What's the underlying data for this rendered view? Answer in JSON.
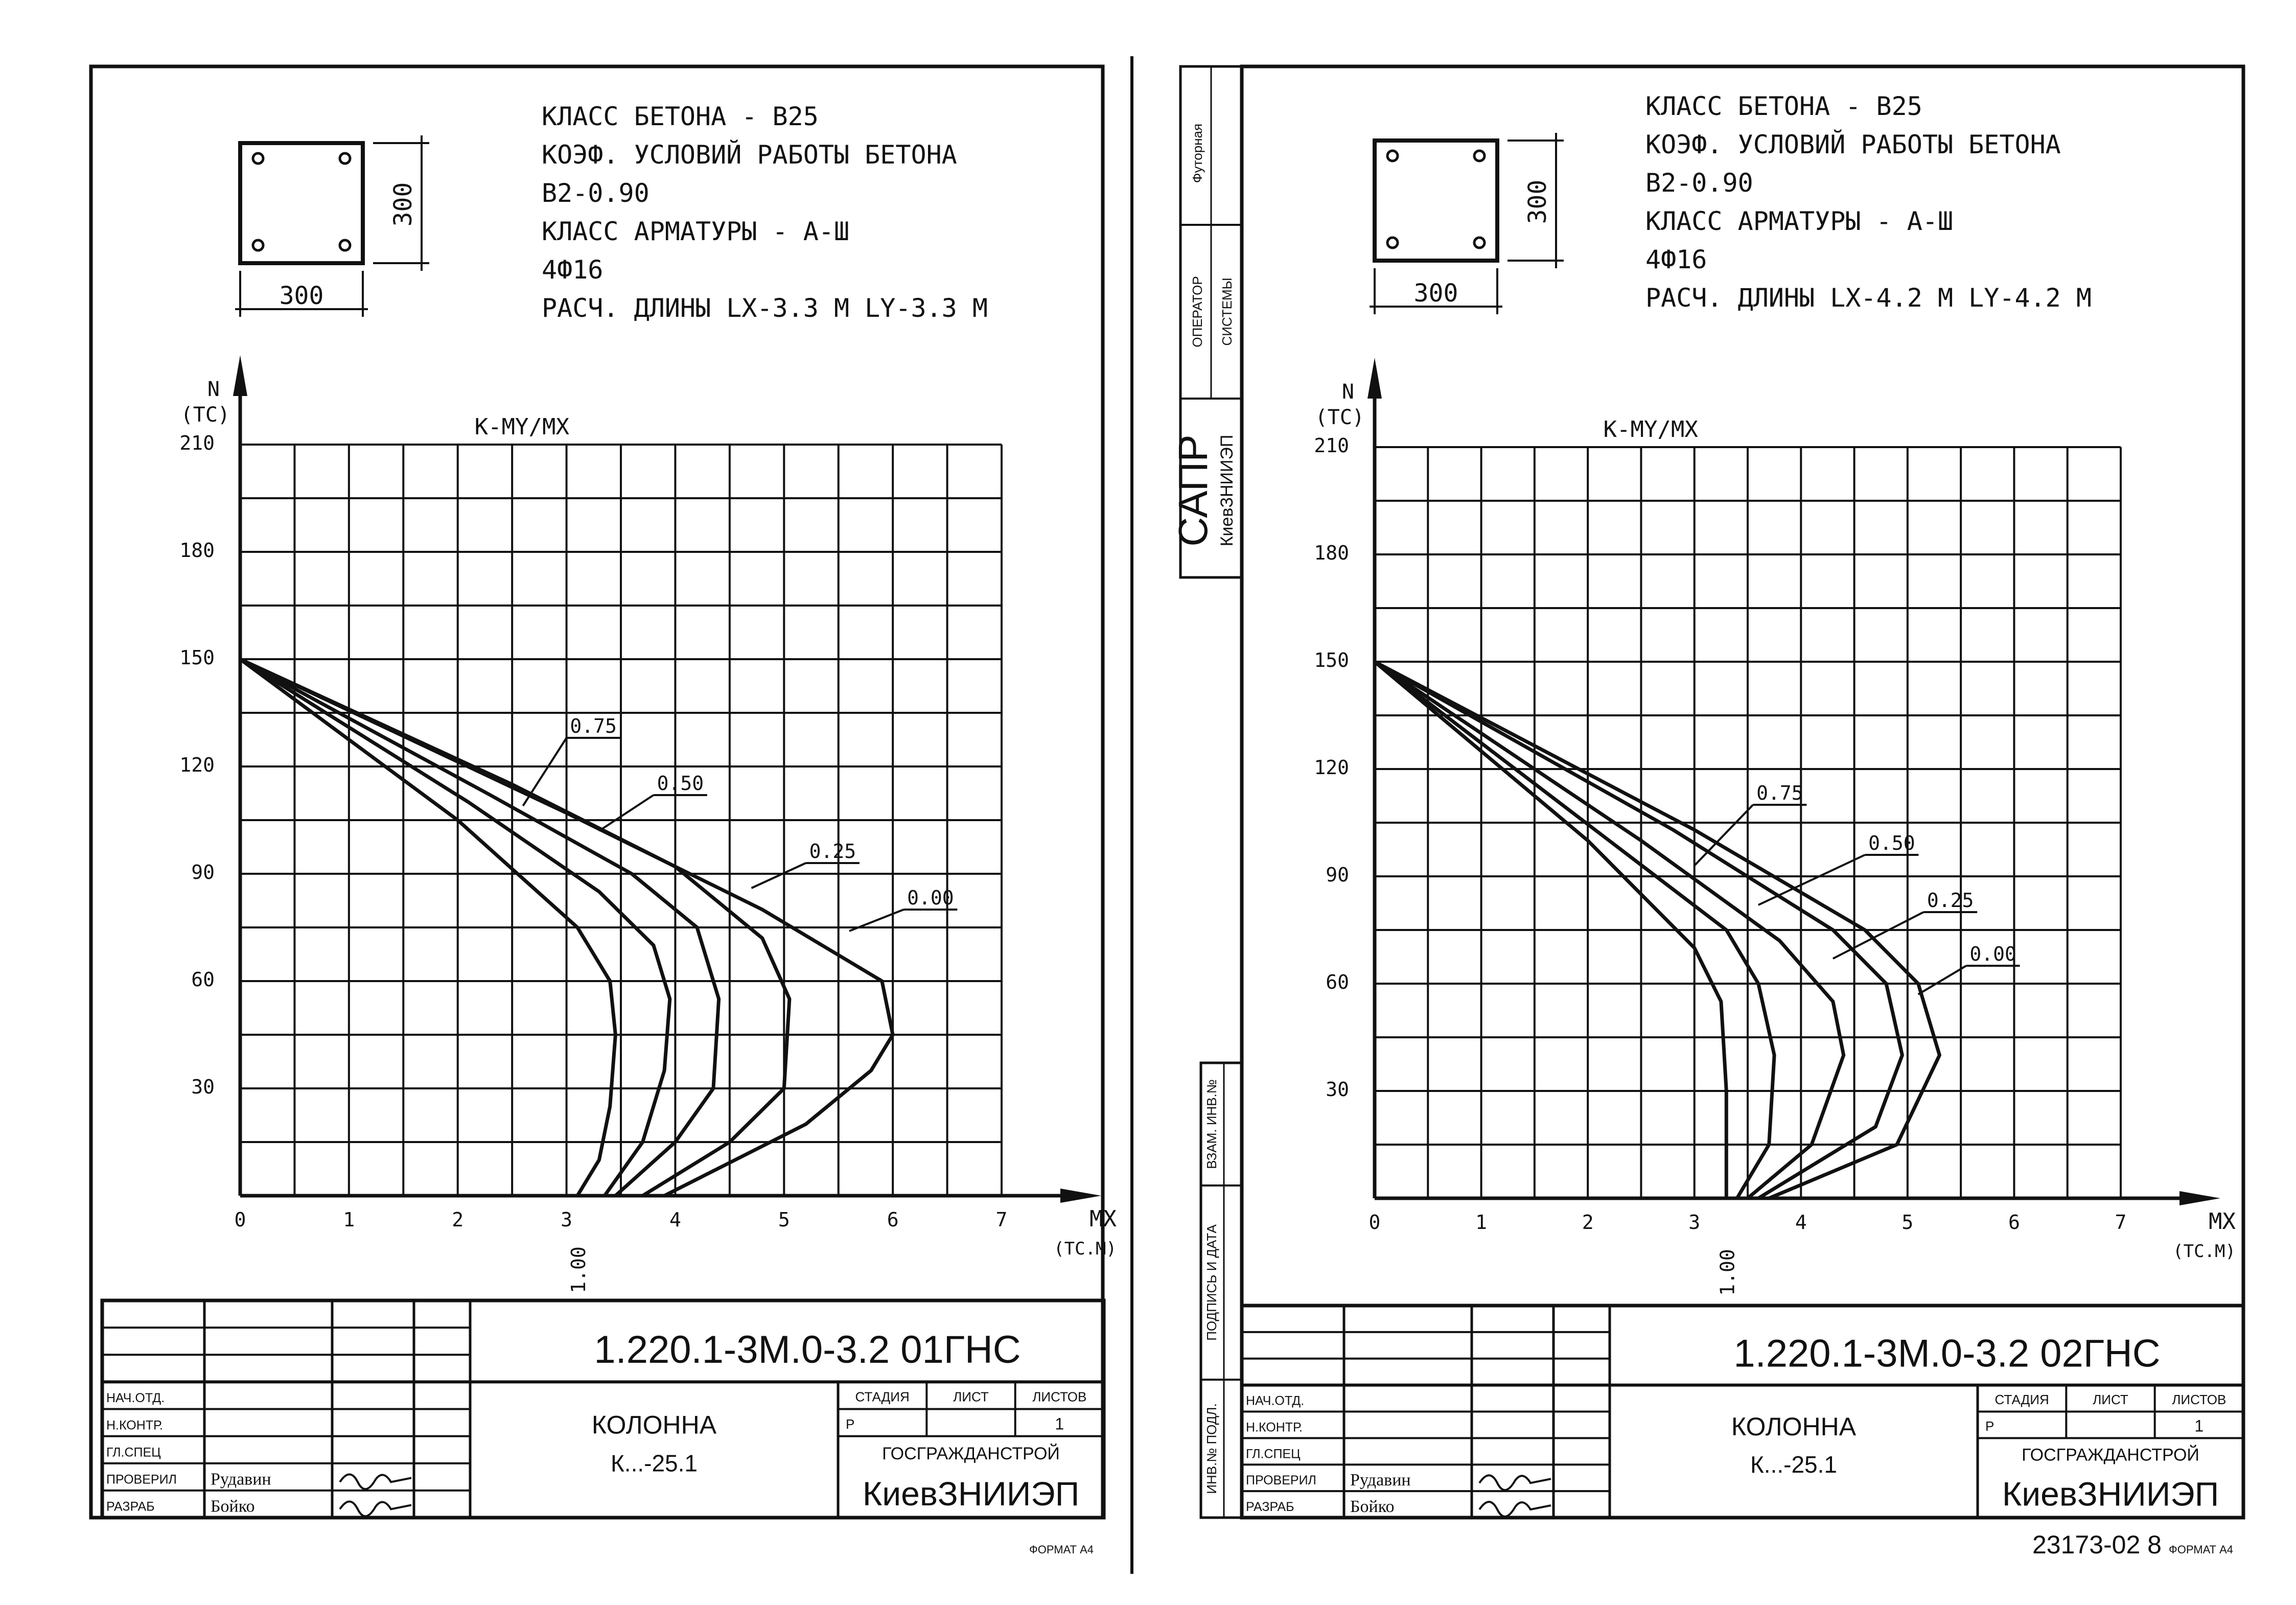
{
  "sheets": [
    {
      "params": [
        "КЛАСС БЕТОНА - В25",
        "КОЭФ. УСЛОВИЙ РАБОТЫ БЕТОНА",
        "В2-0.90",
        "КЛАСС АРМАТУРЫ - А-Ш",
        "4Ф16",
        "РАСЧ. ДЛИНЫ  LX-3.3 М  LY-3.3 М"
      ],
      "section": {
        "width_label": "300",
        "height_label": "300"
      },
      "chart_data": {
        "type": "line",
        "title": "K-MY/MX",
        "ylabel": "N (TC)",
        "xlabel": "MX (TC.M)",
        "xlim": [
          0,
          7
        ],
        "ylim": [
          0,
          210
        ],
        "x_ticks": [
          "0",
          "1",
          "2",
          "3",
          "4",
          "5",
          "6",
          "7"
        ],
        "y_ticks": [
          "30",
          "60",
          "90",
          "120",
          "150",
          "180",
          "210"
        ],
        "series": [
          {
            "name": "1.00",
            "points": [
              [
                3.1,
                0
              ],
              [
                3.3,
                10
              ],
              [
                3.4,
                25
              ],
              [
                3.45,
                45
              ],
              [
                3.4,
                60
              ],
              [
                3.1,
                75
              ],
              [
                2.0,
                105
              ],
              [
                0,
                150
              ]
            ]
          },
          {
            "name": "0.75",
            "points": [
              [
                3.35,
                0
              ],
              [
                3.7,
                15
              ],
              [
                3.9,
                35
              ],
              [
                3.95,
                55
              ],
              [
                3.8,
                70
              ],
              [
                3.3,
                85
              ],
              [
                2.1,
                110
              ],
              [
                0,
                150
              ]
            ]
          },
          {
            "name": "0.50",
            "points": [
              [
                3.45,
                0
              ],
              [
                4.0,
                15
              ],
              [
                4.35,
                30
              ],
              [
                4.4,
                55
              ],
              [
                4.2,
                75
              ],
              [
                3.6,
                90
              ],
              [
                2.3,
                112
              ],
              [
                0,
                150
              ]
            ]
          },
          {
            "name": "0.25",
            "points": [
              [
                3.7,
                0
              ],
              [
                4.5,
                15
              ],
              [
                5.0,
                30
              ],
              [
                5.05,
                55
              ],
              [
                4.8,
                72
              ],
              [
                4.0,
                92
              ],
              [
                2.5,
                115
              ],
              [
                0,
                150
              ]
            ]
          },
          {
            "name": "0.00",
            "points": [
              [
                3.9,
                0
              ],
              [
                5.2,
                20
              ],
              [
                5.8,
                35
              ],
              [
                6.0,
                45
              ],
              [
                5.9,
                60
              ],
              [
                4.8,
                80
              ],
              [
                3.0,
                107
              ],
              [
                0,
                150
              ]
            ]
          }
        ],
        "labels": [
          {
            "text": "0.75",
            "at": [
              3.0,
              128
            ],
            "to": [
              2.6,
              109
            ]
          },
          {
            "text": "0.50",
            "at": [
              3.8,
              112
            ],
            "to": [
              3.3,
              102
            ]
          },
          {
            "text": "0.25",
            "at": [
              5.2,
              93
            ],
            "to": [
              4.7,
              86
            ]
          },
          {
            "text": "0.00",
            "at": [
              6.1,
              80
            ],
            "to": [
              5.6,
              74
            ]
          }
        ],
        "label_100": "1.00"
      },
      "title_block": {
        "code": "1.220.1-3М.0-3.2 01ГНС",
        "name_line1": "КОЛОННА",
        "name_line2": "К...-25.1",
        "stage_h": "СТАДИЯ",
        "sheet_h": "ЛИСТ",
        "sheets_h": "ЛИСТОВ",
        "stage": "Р",
        "sheet": "",
        "sheets": "1",
        "org1": "ГОСГРАЖДАНСТРОЙ",
        "org2": "КиевЗНИИЭП",
        "roles": [
          "НАЧ.ОТД.",
          "Н.КОНТР.",
          "ГЛ.СПЕЦ",
          "ПРОВЕРИЛ",
          "РАЗРАБ"
        ],
        "names": [
          "",
          "",
          "",
          "Рудавин",
          "Бойко"
        ],
        "format": "ФОРМАТ А4",
        "doc_number": ""
      }
    },
    {
      "params": [
        "КЛАСС БЕТОНА - В25",
        "КОЭФ. УСЛОВИЙ РАБОТЫ БЕТОНА",
        "В2-0.90",
        "КЛАСС АРМАТУРЫ - А-Ш",
        "4Ф16",
        "РАСЧ. ДЛИНЫ  LX-4.2 М  LY-4.2 М"
      ],
      "section": {
        "width_label": "300",
        "height_label": "300"
      },
      "chart_data": {
        "type": "line",
        "title": "K-MY/MX",
        "ylabel": "N (TC)",
        "xlabel": "MX (TC.M)",
        "xlim": [
          0,
          7
        ],
        "ylim": [
          0,
          210
        ],
        "x_ticks": [
          "0",
          "1",
          "2",
          "3",
          "4",
          "5",
          "6",
          "7"
        ],
        "y_ticks": [
          "30",
          "60",
          "90",
          "120",
          "150",
          "180",
          "210"
        ],
        "series": [
          {
            "name": "1.00",
            "points": [
              [
                3.3,
                0
              ],
              [
                3.3,
                30
              ],
              [
                3.25,
                55
              ],
              [
                3.0,
                70
              ],
              [
                2.0,
                100
              ],
              [
                0,
                150
              ]
            ]
          },
          {
            "name": "0.75",
            "points": [
              [
                3.4,
                0
              ],
              [
                3.7,
                15
              ],
              [
                3.75,
                40
              ],
              [
                3.6,
                60
              ],
              [
                3.3,
                75
              ],
              [
                2.2,
                100
              ],
              [
                0,
                150
              ]
            ]
          },
          {
            "name": "0.50",
            "points": [
              [
                3.5,
                0
              ],
              [
                4.1,
                15
              ],
              [
                4.4,
                40
              ],
              [
                4.3,
                55
              ],
              [
                3.8,
                72
              ],
              [
                2.5,
                100
              ],
              [
                0,
                150
              ]
            ]
          },
          {
            "name": "0.25",
            "points": [
              [
                3.6,
                0
              ],
              [
                4.7,
                20
              ],
              [
                4.95,
                40
              ],
              [
                4.8,
                60
              ],
              [
                4.3,
                75
              ],
              [
                2.8,
                103
              ],
              [
                0,
                150
              ]
            ]
          },
          {
            "name": "0.00",
            "points": [
              [
                3.7,
                0
              ],
              [
                4.9,
                15
              ],
              [
                5.3,
                40
              ],
              [
                5.1,
                60
              ],
              [
                4.6,
                75
              ],
              [
                3.0,
                103
              ],
              [
                0,
                150
              ]
            ]
          }
        ],
        "labels": [
          {
            "text": "0.75",
            "at": [
              3.55,
              110
            ],
            "to": [
              3.0,
              93
            ]
          },
          {
            "text": "0.50",
            "at": [
              4.6,
              96
            ],
            "to": [
              3.6,
              82
            ]
          },
          {
            "text": "0.25",
            "at": [
              5.15,
              80
            ],
            "to": [
              4.3,
              67
            ]
          },
          {
            "text": "0.00",
            "at": [
              5.55,
              65
            ],
            "to": [
              5.1,
              57
            ]
          }
        ],
        "label_100": "1.00"
      },
      "title_block": {
        "code": "1.220.1-3М.0-3.2 02ГНС",
        "name_line1": "КОЛОННА",
        "name_line2": "К...-25.1",
        "stage_h": "СТАДИЯ",
        "sheet_h": "ЛИСТ",
        "sheets_h": "ЛИСТОВ",
        "stage": "Р",
        "sheet": "",
        "sheets": "1",
        "org1": "ГОСГРАЖДАНСТРОЙ",
        "org2": "КиевЗНИИЭП",
        "roles": [
          "НАЧ.ОТД.",
          "Н.КОНТР.",
          "ГЛ.СПЕЦ",
          "ПРОВЕРИЛ",
          "РАЗРАБ"
        ],
        "names": [
          "",
          "",
          "",
          "Рудавин",
          "Бойко"
        ],
        "format": "ФОРМАТ А4",
        "doc_number": "23173-02 8"
      }
    }
  ],
  "side_stamps": {
    "sapr": "САПР",
    "kiev": "КиевЗНИИЭП",
    "operator": "ОПЕРАТОР",
    "system": "СИСТЕМЫ",
    "futornaya": "Футорная",
    "vzam": "ВЗАМ. ИНВ.№",
    "podpis": "ПОДПИСЬ И ДАТА",
    "inv": "ИНВ.№ ПОДЛ."
  }
}
